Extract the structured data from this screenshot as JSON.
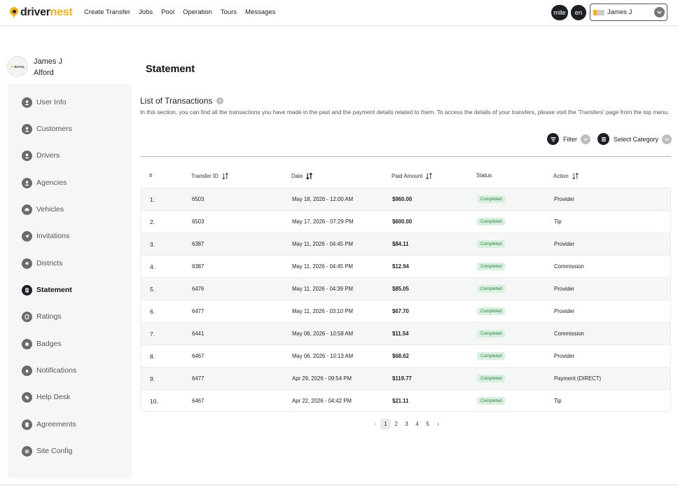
{
  "header": {
    "logo": {
      "part1": "driver",
      "part2": "nest"
    },
    "nav": [
      "Create Transfer",
      "Jobs",
      "Pool",
      "Operation",
      "Tours",
      "Messages"
    ],
    "unit": "mile",
    "lang": "en",
    "user_select": "James J"
  },
  "profile": {
    "first": "James J",
    "last": "Alford",
    "logo_text": "ROYAL"
  },
  "sidebar": {
    "items": [
      {
        "label": "User Info",
        "icon": "user-icon"
      },
      {
        "label": "Customers",
        "icon": "customer-icon"
      },
      {
        "label": "Drivers",
        "icon": "driver-icon"
      },
      {
        "label": "Agencies",
        "icon": "agency-icon"
      },
      {
        "label": "Vehicles",
        "icon": "vehicle-icon"
      },
      {
        "label": "Invitations",
        "icon": "invitation-icon"
      },
      {
        "label": "Districts",
        "icon": "district-icon"
      },
      {
        "label": "Statement",
        "icon": "statement-icon",
        "active": true
      },
      {
        "label": "Ratings",
        "icon": "rating-icon"
      },
      {
        "label": "Badges",
        "icon": "badge-icon"
      },
      {
        "label": "Notifications",
        "icon": "notification-icon"
      },
      {
        "label": "Help Desk",
        "icon": "help-desk-icon"
      },
      {
        "label": "Agreements",
        "icon": "agreement-icon"
      },
      {
        "label": "Site Config",
        "icon": "site-config-icon"
      }
    ]
  },
  "main": {
    "title": "Statement",
    "section_title": "List of Transactions",
    "description": "In this section, you can find all the transactions you have made in the past and the payment details related to them. To access the details of your transfers, please visit the 'Transfers' page from the top menu.",
    "filter_label": "Filter",
    "category_label": "Select Category"
  },
  "table": {
    "headers": [
      "#",
      "Transfer ID",
      "Date",
      "Paid Amount",
      "Status",
      "Action"
    ],
    "rows": [
      {
        "n": "1.",
        "id": "6503",
        "date": "May 18, 2026 - 12:00 AM",
        "amount": "$960.00",
        "status": "Completed",
        "action": "Provider"
      },
      {
        "n": "2.",
        "id": "6503",
        "date": "May 17, 2026 - 07:29 PM",
        "amount": "$600.00",
        "status": "Completed",
        "action": "Tip"
      },
      {
        "n": "3.",
        "id": "6387",
        "date": "May 11, 2026 - 04:45 PM",
        "amount": "$84.11",
        "status": "Completed",
        "action": "Provider"
      },
      {
        "n": "4.",
        "id": "6387",
        "date": "May 11, 2026 - 04:45 PM",
        "amount": "$12.94",
        "status": "Completed",
        "action": "Commission"
      },
      {
        "n": "5.",
        "id": "6476",
        "date": "May 11, 2026 - 04:39 PM",
        "amount": "$85.05",
        "status": "Completed",
        "action": "Provider"
      },
      {
        "n": "6.",
        "id": "6477",
        "date": "May 11, 2026 - 03:10 PM",
        "amount": "$67.70",
        "status": "Completed",
        "action": "Provider"
      },
      {
        "n": "7.",
        "id": "6441",
        "date": "May 06, 2026 - 10:58 AM",
        "amount": "$11.54",
        "status": "Completed",
        "action": "Commission"
      },
      {
        "n": "8.",
        "id": "6467",
        "date": "May 06, 2026 - 10:13 AM",
        "amount": "$68.62",
        "status": "Completed",
        "action": "Provider"
      },
      {
        "n": "9.",
        "id": "6477",
        "date": "Apr 29, 2026 - 09:54 PM",
        "amount": "$119.77",
        "status": "Completed",
        "action": "Payment (DIRECT)"
      },
      {
        "n": "10.",
        "id": "6467",
        "date": "Apr 22, 2026 - 04:42 PM",
        "amount": "$21.11",
        "status": "Completed",
        "action": "Tip"
      }
    ]
  },
  "pagination": {
    "prev": "‹",
    "pages": [
      "1",
      "2",
      "3",
      "4",
      "5"
    ],
    "next": "›",
    "current": "1"
  },
  "colors": {
    "brand": "#f5b313",
    "dark": "#1c1f24",
    "badge_bg": "#d8f1de",
    "badge_text": "#2e7d45"
  }
}
